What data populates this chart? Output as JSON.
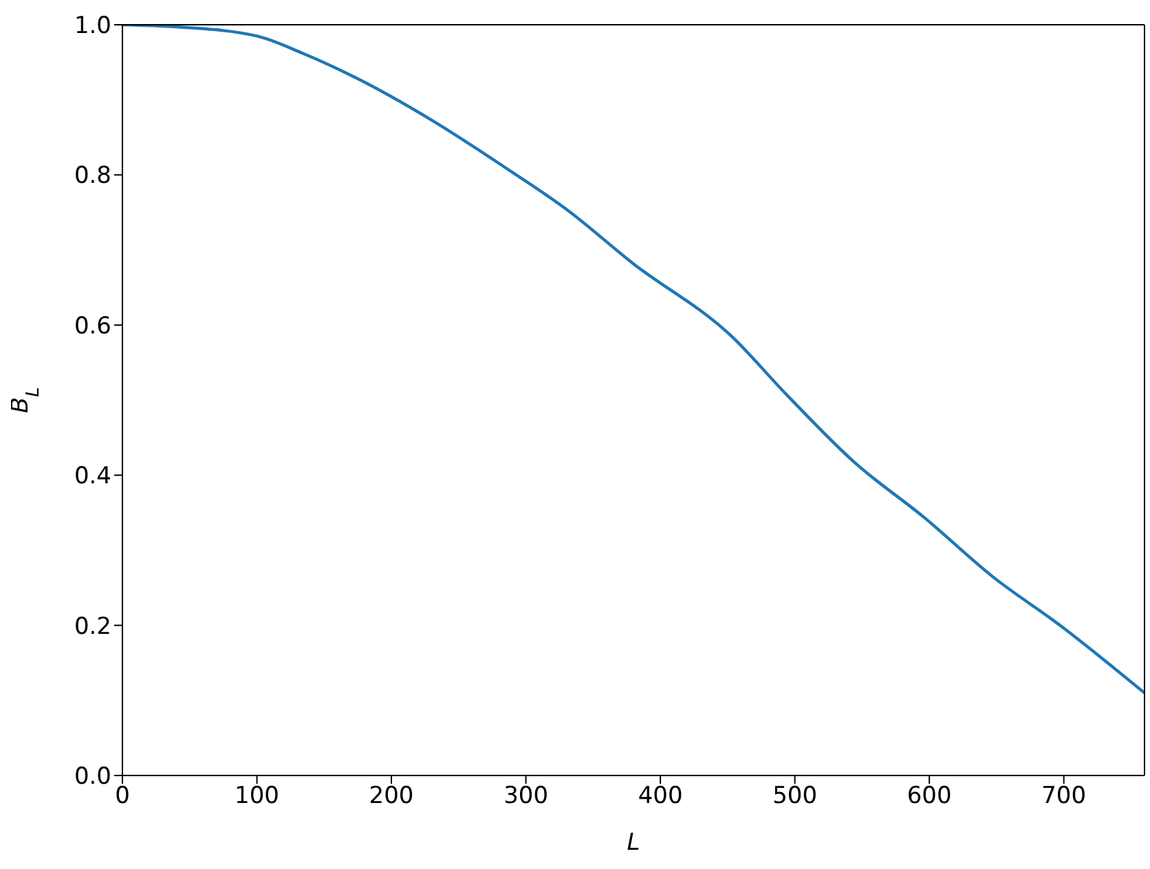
{
  "chart_data": {
    "type": "line",
    "xlabel": "L",
    "ylabel": "B$_{L}$",
    "x": [
      0,
      42,
      100,
      134,
      174,
      229,
      287,
      331,
      379,
      453,
      494,
      545,
      596,
      647,
      698,
      760
    ],
    "series": [
      {
        "color": "#1f77b4",
        "values": [
          1.0,
          0.997,
          0.985,
          0.962,
          0.929,
          0.874,
          0.807,
          0.753,
          0.683,
          0.585,
          0.507,
          0.416,
          0.344,
          0.265,
          0.199,
          0.11
        ]
      }
    ],
    "xlim": [
      0,
      760
    ],
    "xticks": [
      0,
      100,
      200,
      300,
      400,
      500,
      600,
      700
    ],
    "ylim": [
      0,
      1
    ],
    "yticks": [
      {
        "value": 0,
        "label": "0.0"
      },
      {
        "value": 0.2,
        "label": "0.2"
      },
      {
        "value": 0.4,
        "label": "0.4"
      },
      {
        "value": 0.6,
        "label": "0.6"
      },
      {
        "value": 0.8,
        "label": "0.8"
      },
      {
        "value": 1,
        "label": "1.0"
      }
    ],
    "grid": false,
    "legend": false,
    "marker": "none",
    "line_style": "solid"
  }
}
